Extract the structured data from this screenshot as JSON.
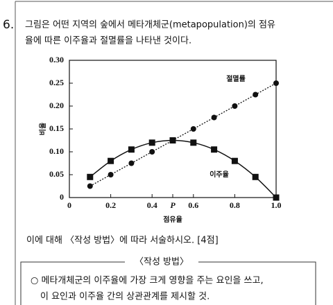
{
  "question": {
    "number": "6.",
    "lines": [
      "그림은 어떤 지역의 숲에서 메타개체군(metapopulation)의 점유",
      "율에 따른 이주율과 절멸률을 나타낸 것이다."
    ]
  },
  "chart_data": {
    "type": "line",
    "x_label": "점유율",
    "y_label": "비율",
    "x": [
      0.1,
      0.2,
      0.3,
      0.4,
      0.5,
      0.6,
      0.7,
      0.8,
      0.9,
      1.0
    ],
    "series": [
      {
        "name": "절멸률",
        "color": "#111111",
        "values": [
          0.025,
          0.05,
          0.075,
          0.1,
          0.125,
          0.15,
          0.175,
          0.2,
          0.225,
          0.25
        ]
      },
      {
        "name": "이주율",
        "color": "#111111",
        "values": [
          0.045,
          0.08,
          0.105,
          0.12,
          0.125,
          0.12,
          0.105,
          0.08,
          0.045,
          0.0
        ]
      }
    ],
    "xlim": [
      0,
      1
    ],
    "ylim": [
      0,
      0.3
    ],
    "xticks": [
      0,
      0.2,
      0.4,
      {
        "value": 0.5,
        "label": "P"
      },
      0.6,
      0.8,
      {
        "value": 1,
        "label": "1.0"
      }
    ],
    "yticks": [
      0,
      0.05,
      {
        "value": 0.1,
        "label": "0.10"
      },
      0.15,
      {
        "value": 0.2,
        "label": "0.20"
      },
      0.25,
      {
        "value": 0.3,
        "label": "0.30"
      }
    ]
  },
  "prompt": "이에 대해 〈작성 방법〉에 따라 서술하시오. [4점]",
  "method_box": {
    "title": "〈작성 방법〉",
    "items": [
      "○ 메타개체군의 이주율에 가장 크게 영향을 주는 요인을 쓰고,",
      "이 요인과 이주율 간의 상관관계를 제시할 것."
    ]
  }
}
